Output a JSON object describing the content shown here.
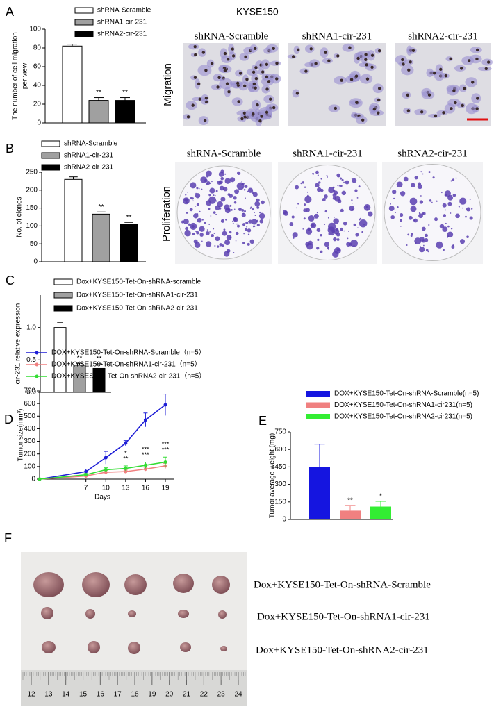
{
  "figure": {
    "panels": [
      "A",
      "B",
      "C",
      "D",
      "E",
      "F"
    ],
    "cell_line": "KYSE150",
    "migration": {
      "label": "Migration",
      "images": [
        "shRNA-Scramble",
        "shRNA1-cir-231",
        "shRNA2-cir-231"
      ]
    },
    "proliferation": {
      "label": "Proliferation",
      "images": [
        "shRNA-Scramble",
        "shRNA1-cir-231",
        "shRNA2-cir-231"
      ]
    },
    "tumors": {
      "labels": [
        "Dox+KYSE150-Tet-On-shRNA-Scramble",
        "Dox+KYSE150-Tet-On-shRNA1-cir-231",
        "Dox+KYSE150-Tet-On-shRNA2-cir-231"
      ]
    },
    "ruler": [
      12,
      13,
      14,
      15,
      16,
      17,
      18,
      19,
      20,
      21,
      22,
      23,
      24
    ]
  },
  "chart_data": [
    {
      "type": "bar",
      "ylabel": [
        "The number of cell migration",
        "per view"
      ],
      "categories": [
        "shRNA-Scramble",
        "shRNA1-cir-231",
        "shRNA2-cir-231"
      ],
      "values": [
        82,
        24,
        24
      ],
      "errors": [
        2,
        3,
        3
      ],
      "colors": [
        "#ffffff",
        "#a0a0a0",
        "#000000"
      ],
      "ylim": [
        0,
        100
      ],
      "yticks": [
        0,
        20,
        40,
        60,
        80,
        100
      ],
      "annotations": [
        {
          "x": "shRNA1-cir-231",
          "text": "**"
        },
        {
          "x": "shRNA2-cir-231",
          "text": "**"
        }
      ]
    },
    {
      "type": "bar",
      "ylabel": [
        "No. of clones"
      ],
      "categories": [
        "shRNA-Scramble",
        "shRNA1-cir-231",
        "shRNA2-cir-231"
      ],
      "values": [
        230,
        133,
        105
      ],
      "errors": [
        7,
        6,
        5
      ],
      "colors": [
        "#ffffff",
        "#a0a0a0",
        "#000000"
      ],
      "ylim": [
        0,
        250
      ],
      "yticks": [
        0,
        50,
        100,
        150,
        200,
        250
      ],
      "annotations": [
        {
          "x": "shRNA1-cir-231",
          "text": "**"
        },
        {
          "x": "shRNA2-cir-231",
          "text": "**"
        }
      ]
    },
    {
      "type": "bar",
      "ylabel": [
        "cir-231 relative expression"
      ],
      "categories": [
        "Dox+KYSE150-Tet-On-shRNA-scramble",
        "Dox+KYSE150-Tet-On-shRNA1-cir-231",
        "Dox+KYSE150-Tet-On-shRNA2-cir-231"
      ],
      "values": [
        1.0,
        0.42,
        0.37
      ],
      "errors": [
        0.08,
        0.03,
        0.07
      ],
      "colors": [
        "#ffffff",
        "#a0a0a0",
        "#000000"
      ],
      "ylim": [
        0,
        1.5
      ],
      "yticks": [
        {
          "value": 0,
          "label": "0.0"
        },
        {
          "value": 0.5,
          "label": "0.5"
        },
        {
          "value": 1,
          "label": "1.0"
        }
      ],
      "annotations": [
        {
          "x": "Dox+KYSE150-Tet-On-shRNA1-cir-231",
          "text": "**"
        },
        {
          "x": "Dox+KYSE150-Tet-On-shRNA2-cir-231",
          "text": "**"
        }
      ]
    },
    {
      "type": "line",
      "xlabel": "Days",
      "ylabel": [
        "Tumor size(mm³)"
      ],
      "x": [
        0,
        7,
        10,
        13,
        16,
        19
      ],
      "xlim": [
        0,
        19
      ],
      "xticks": [
        7,
        10,
        13,
        16,
        19
      ],
      "ylim": [
        0,
        700
      ],
      "yticks": [
        0,
        100,
        200,
        300,
        400,
        500,
        600,
        700
      ],
      "series": [
        {
          "name": "DOX+KYSE150-Tet-On-shRNA-Scramble（n=5）",
          "color": "#1f1fd6",
          "values": [
            0,
            60,
            170,
            285,
            470,
            590
          ],
          "errors": [
            0,
            20,
            50,
            20,
            55,
            85
          ]
        },
        {
          "name": "DOX+KYSE150-Tet-On-shRNA1-cir-231（n=5）",
          "color": "#f08080",
          "values": [
            0,
            25,
            55,
            60,
            80,
            105
          ],
          "errors": [
            0,
            8,
            15,
            12,
            15,
            20
          ]
        },
        {
          "name": "DOX+KYSES150-Tet-On-shRNA2-cir-231（n=5）",
          "color": "#33dd33",
          "values": [
            0,
            35,
            75,
            85,
            110,
            135
          ],
          "errors": [
            0,
            10,
            15,
            20,
            25,
            40
          ]
        }
      ],
      "annotations": [
        {
          "x": 13,
          "text": "**",
          "color": "#f08080"
        },
        {
          "x": 13,
          "text": "*",
          "color": "#33dd33"
        },
        {
          "x": 16,
          "text": "***",
          "color": "#f08080"
        },
        {
          "x": 16,
          "text": "***",
          "color": "#33dd33"
        },
        {
          "x": 19,
          "text": "***",
          "color": "#f08080"
        },
        {
          "x": 19,
          "text": "***",
          "color": "#33dd33"
        }
      ]
    },
    {
      "type": "bar",
      "ylabel": [
        "Tumor average weight (mg)"
      ],
      "categories": [
        "DOX+KYSE150-Tet-On-shRNA-Scramble(n=5)",
        "DOX+KYSE150-Tet-On-shRNA1-cir231(n=5)",
        "DOX+KYSE150-Tet-On-shRNA2-cir231(n=5)"
      ],
      "values": [
        450,
        75,
        110
      ],
      "errors": [
        195,
        45,
        45
      ],
      "colors": [
        "#1515e0",
        "#f08080",
        "#33ee33"
      ],
      "ylim": [
        0,
        750
      ],
      "yticks": [
        0,
        150,
        300,
        450,
        600,
        750
      ],
      "annotations": [
        {
          "x": "DOX+KYSE150-Tet-On-shRNA1-cir231(n=5)",
          "text": "**",
          "color": "#f08080"
        },
        {
          "x": "DOX+KYSE150-Tet-On-shRNA2-cir231(n=5)",
          "text": "*",
          "color": "#33ee33"
        }
      ]
    }
  ]
}
